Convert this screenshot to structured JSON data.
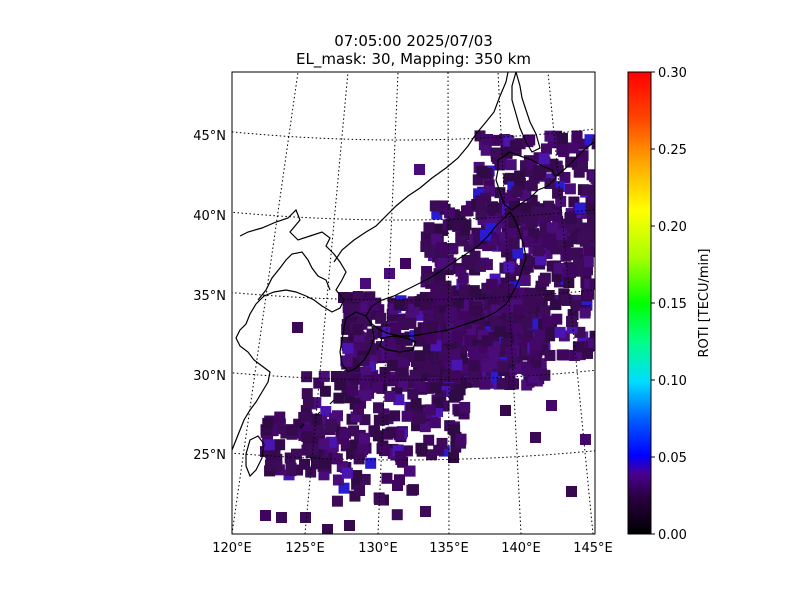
{
  "title": {
    "line1": "07:05:00 2025/07/03",
    "line2": "EL_mask: 30, Mapping: 350 km"
  },
  "map": {
    "projection": "polar-like conic (curved parallels, converging meridians)",
    "lon_range": [
      120,
      145
    ],
    "lat_range": [
      20,
      49
    ],
    "lon_ticks": [
      "120°E",
      "125°E",
      "130°E",
      "135°E",
      "140°E",
      "145°E"
    ],
    "lat_ticks": [
      "25°N",
      "30°N",
      "35°N",
      "40°N",
      "45°N"
    ],
    "graticule": "dotted",
    "coastlines": "black"
  },
  "colorbar": {
    "label": "ROTI [TECU/min]",
    "min": 0.0,
    "max": 0.3,
    "ticks": [
      "0.00",
      "0.05",
      "0.10",
      "0.15",
      "0.20",
      "0.25",
      "0.30"
    ],
    "colormap": [
      "#000000",
      "#3a0060",
      "#5a00c0",
      "#0000ff",
      "#00aaff",
      "#00ffff",
      "#00ff66",
      "#66ff00",
      "#ffff00",
      "#ffaa00",
      "#ff3300",
      "#ff0000"
    ]
  },
  "chart_data": {
    "type": "heatmap",
    "title": "07:05:00 2025/07/03 EL_mask: 30, Mapping: 350 km",
    "xlabel": "",
    "ylabel": "",
    "value_label": "ROTI [TECU/min]",
    "value_range": [
      0,
      0.3
    ],
    "description_values": "ROTI cells mostly 0.02–0.04 TECU/min over Japan and surrounding sea; a few cells near 0.05–0.06"
  }
}
